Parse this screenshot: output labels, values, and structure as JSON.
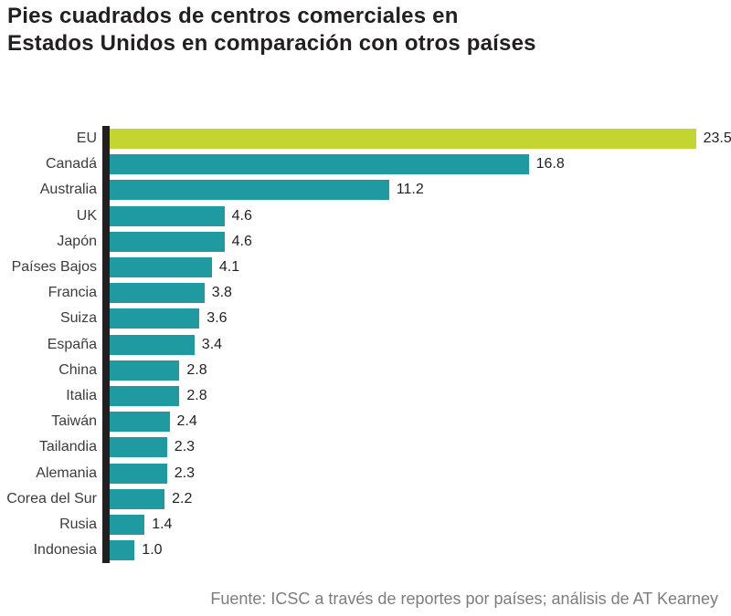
{
  "title": {
    "line1": "Pies cuadrados de centros comerciales en",
    "line2": "Estados Unidos en comparación con otros países"
  },
  "footer": "Fuente: ICSC a través de reportes por países; análisis de AT Kearney",
  "chart_data": {
    "type": "bar",
    "orientation": "horizontal",
    "title": "Pies cuadrados de centros comerciales en Estados Unidos en comparación con otros países",
    "categories": [
      "EU",
      "Canadá",
      "Australia",
      "UK",
      "Japón",
      "Países Bajos",
      "Francia",
      "Suiza",
      "España",
      "China",
      "Italia",
      "Taiwán",
      "Tailandia",
      "Alemania",
      "Corea del Sur",
      "Rusia",
      "Indonesia"
    ],
    "values": [
      23.5,
      16.8,
      11.2,
      4.6,
      4.6,
      4.1,
      3.8,
      3.6,
      3.4,
      2.8,
      2.8,
      2.4,
      2.3,
      2.3,
      2.2,
      1.4,
      1.0
    ],
    "value_labels": true,
    "xlabel": "",
    "ylabel": "",
    "xlim": [
      0,
      24.9
    ],
    "grid": false,
    "legend": null,
    "highlight_index": 0,
    "colors": {
      "highlight_bar": "#c2d531",
      "default_bar": "#1f9aa0",
      "axis_line": "#231f20",
      "value_label": "#231f20",
      "category_label": "#3c3c3e",
      "title": "#231f20",
      "footer": "#7d7d7f",
      "background": "#ffffff"
    }
  }
}
